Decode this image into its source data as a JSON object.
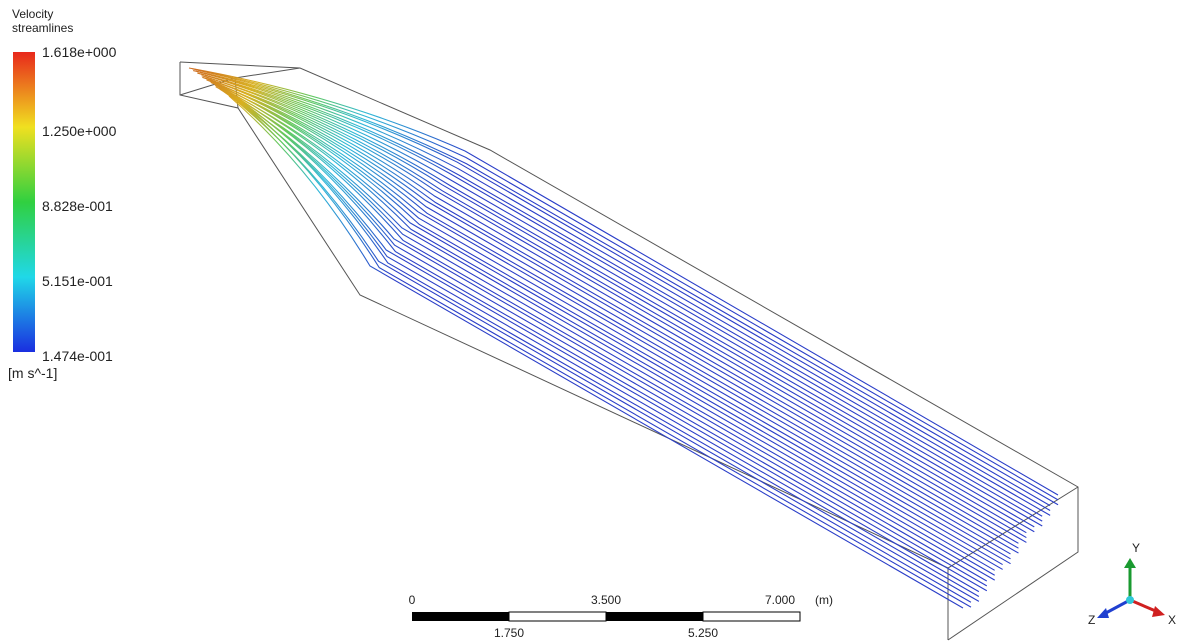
{
  "legend": {
    "title": [
      "Velocity",
      "streamlines"
    ],
    "labels": [
      "1.618e+000",
      "1.250e+000",
      "8.828e-001",
      "5.151e-001",
      "1.474e-001"
    ],
    "unit": "[m s^-1]"
  },
  "scale_bar": {
    "top_labels": [
      "0",
      "3.500",
      "7.000"
    ],
    "unit": "(m)",
    "bottom_labels": [
      "1.750",
      "5.250"
    ]
  },
  "axes": {
    "y": "Y",
    "z": "Z",
    "x": "X"
  }
}
